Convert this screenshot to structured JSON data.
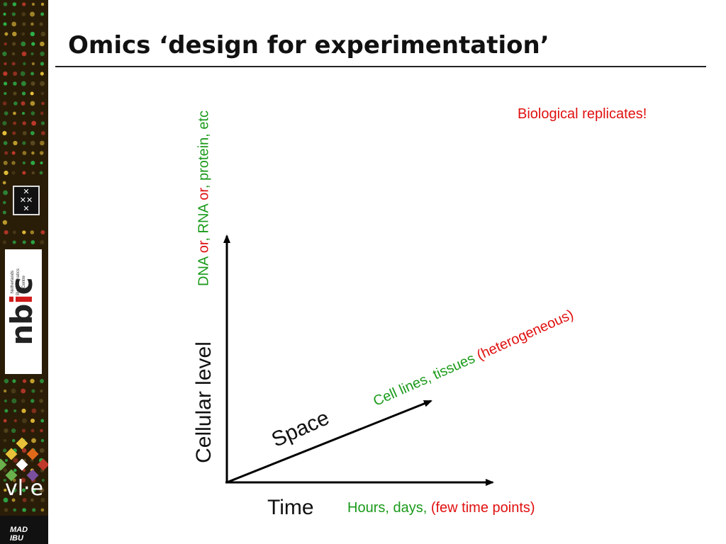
{
  "slide": {
    "title": "Omics ‘design for experimentation’"
  },
  "sidebar": {
    "logos": {
      "uva": "uva-crest",
      "nbic": {
        "word_part1": "nb",
        "word_accent": "i",
        "word_part2": "c",
        "subtitle_line1": "Netherlands",
        "subtitle_line2": "Bioinformatics",
        "subtitle_line3": "Centre"
      },
      "vle": "vl·e",
      "mad": "MAD\nIBU"
    },
    "colors": {
      "background": "#2a1d08",
      "dot_green": "#2db34a",
      "dot_red": "#c0392b",
      "dot_yellow": "#e8c13a"
    }
  },
  "diagram": {
    "y_axis": {
      "label": "Cellular level",
      "detail_parts": [
        {
          "text": "DNA",
          "color": "green"
        },
        {
          "text": " or",
          "color": "red"
        },
        {
          "text": ", ",
          "color": "green"
        },
        {
          "text": "RNA",
          "color": "green"
        },
        {
          "text": " or",
          "color": "red"
        },
        {
          "text": ", protein, etc",
          "color": "green"
        }
      ]
    },
    "diagonal_axis": {
      "label": "Space",
      "detail_parts": [
        {
          "text": "Cell lines, tissues ",
          "color": "green"
        },
        {
          "text": "(heterogeneous)",
          "color": "red"
        }
      ]
    },
    "x_axis": {
      "label": "Time",
      "detail_parts": [
        {
          "text": "Hours, days, ",
          "color": "green"
        },
        {
          "text": "(few time points)",
          "color": "red"
        }
      ]
    },
    "note": "Biological replicates!",
    "colors": {
      "green": "#1a9a1a",
      "red": "#e01010",
      "axis": "#000000"
    }
  }
}
